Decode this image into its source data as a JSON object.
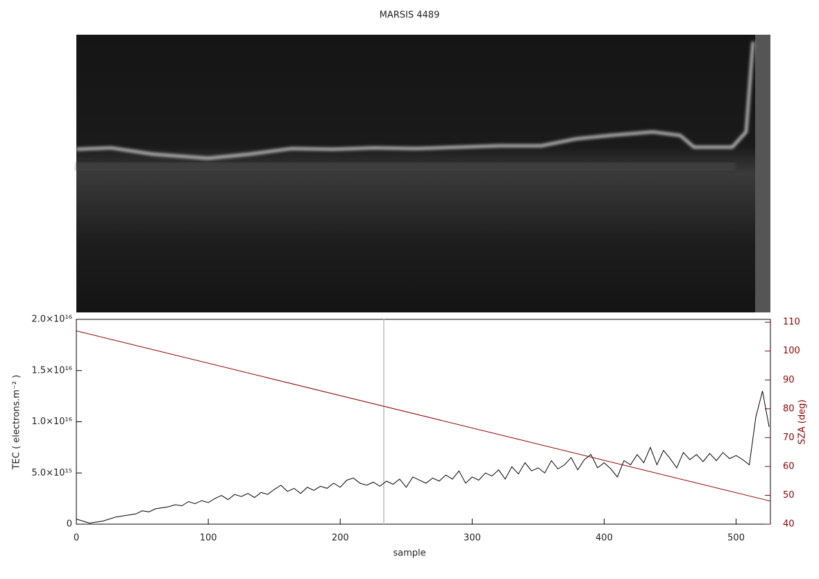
{
  "chart_data": {
    "type": "line",
    "title": "MARSIS 4489",
    "x_label": "sample",
    "y_label": "TEC ( electrons.m⁻² )",
    "y2_label": "SZA (deg)",
    "xlim": [
      0,
      526
    ],
    "xticks": [
      0,
      100,
      200,
      300,
      400,
      500
    ],
    "ylim": [
      0,
      2e+16
    ],
    "yticks": [
      0,
      {
        "value": 5000000000000000.0,
        "label": "5.0×10¹⁵"
      },
      {
        "value": 1e+16,
        "label": "1.0×10¹⁶"
      },
      {
        "value": 1.5e+16,
        "label": "1.5×10¹⁶"
      },
      {
        "value": 2e+16,
        "label": "2.0×10¹⁶"
      }
    ],
    "y2lim": [
      40,
      111
    ],
    "y2ticks": [
      40,
      50,
      60,
      70,
      80,
      90,
      100,
      110
    ],
    "series": [
      {
        "name": "TEC",
        "color": "#000000",
        "x": [
          0,
          5,
          10,
          15,
          20,
          25,
          30,
          35,
          40,
          45,
          50,
          55,
          60,
          65,
          70,
          75,
          80,
          85,
          90,
          95,
          100,
          105,
          110,
          115,
          120,
          125,
          130,
          135,
          140,
          145,
          150,
          155,
          160,
          165,
          170,
          175,
          180,
          185,
          190,
          195,
          200,
          205,
          210,
          215,
          220,
          225,
          230,
          235,
          240,
          245,
          250,
          255,
          260,
          265,
          270,
          275,
          280,
          285,
          290,
          295,
          300,
          305,
          310,
          315,
          320,
          325,
          330,
          335,
          340,
          345,
          350,
          355,
          360,
          365,
          370,
          375,
          380,
          385,
          390,
          395,
          400,
          405,
          410,
          415,
          420,
          425,
          430,
          435,
          440,
          445,
          450,
          455,
          460,
          465,
          470,
          475,
          480,
          485,
          490,
          495,
          500,
          505,
          510,
          515,
          520,
          525
        ],
        "values": [
          500000000000000.0,
          300000000000000.0,
          100000000000000.0,
          200000000000000.0,
          300000000000000.0,
          500000000000000.0,
          700000000000000.0,
          800000000000000.0,
          900000000000000.0,
          1000000000000000.0,
          1300000000000000.0,
          1200000000000000.0,
          1500000000000000.0,
          1600000000000000.0,
          1700000000000000.0,
          1900000000000000.0,
          1800000000000000.0,
          2200000000000000.0,
          2000000000000000.0,
          2300000000000000.0,
          2100000000000000.0,
          2500000000000000.0,
          2800000000000000.0,
          2400000000000000.0,
          2900000000000000.0,
          2700000000000000.0,
          3000000000000000.0,
          2600000000000000.0,
          3100000000000000.0,
          2900000000000000.0,
          3400000000000000.0,
          3800000000000000.0,
          3200000000000000.0,
          3500000000000000.0,
          3000000000000000.0,
          3600000000000000.0,
          3300000000000000.0,
          3700000000000000.0,
          3500000000000000.0,
          4000000000000000.0,
          3600000000000000.0,
          4300000000000000.0,
          4500000000000000.0,
          4000000000000000.0,
          3800000000000000.0,
          4100000000000000.0,
          3700000000000000.0,
          4200000000000000.0,
          3900000000000000.0,
          4400000000000000.0,
          3600000000000000.0,
          4600000000000000.0,
          4300000000000000.0,
          4000000000000000.0,
          4500000000000000.0,
          4200000000000000.0,
          4800000000000000.0,
          4400000000000000.0,
          5200000000000000.0,
          4000000000000000.0,
          4600000000000000.0,
          4300000000000000.0,
          5000000000000000.0,
          4700000000000000.0,
          5300000000000000.0,
          4400000000000000.0,
          5600000000000000.0,
          4900000000000000.0,
          6000000000000000.0,
          5200000000000000.0,
          5500000000000000.0,
          5000000000000000.0,
          6200000000000000.0,
          5400000000000000.0,
          5800000000000000.0,
          6500000000000000.0,
          5300000000000000.0,
          6300000000000000.0,
          6800000000000000.0,
          5500000000000000.0,
          6000000000000000.0,
          5400000000000000.0,
          4600000000000000.0,
          6200000000000000.0,
          5800000000000000.0,
          6800000000000000.0,
          6000000000000000.0,
          7500000000000000.0,
          5800000000000000.0,
          7200000000000000.0,
          6400000000000000.0,
          5500000000000000.0,
          7000000000000000.0,
          6300000000000000.0,
          6800000000000000.0,
          6100000000000000.0,
          6900000000000000.0,
          6200000000000000.0,
          7000000000000000.0,
          6400000000000000.0,
          6700000000000000.0,
          6300000000000000.0,
          5800000000000000.0,
          1.05e+16,
          1.3e+16,
          9500000000000000.0
        ]
      },
      {
        "name": "SZA",
        "color": "#8b0000",
        "axis": "y2",
        "x": [
          0,
          526
        ],
        "values": [
          107,
          48
        ]
      }
    ]
  }
}
